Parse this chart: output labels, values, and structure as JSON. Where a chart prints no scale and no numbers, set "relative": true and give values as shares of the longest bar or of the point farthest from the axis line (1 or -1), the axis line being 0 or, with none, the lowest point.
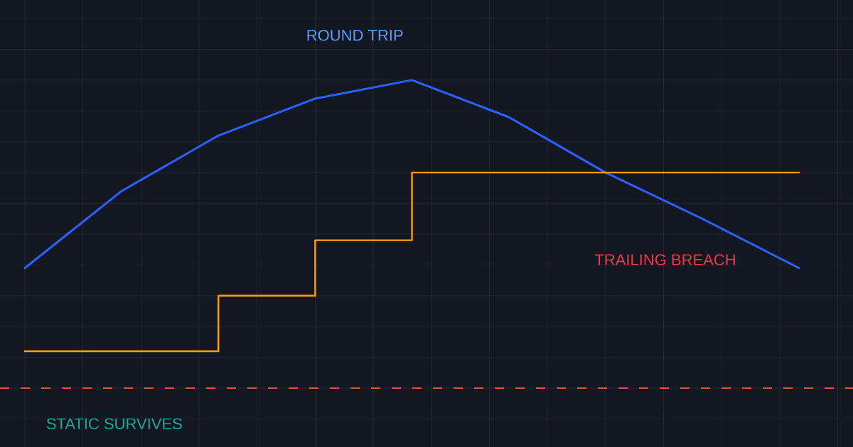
{
  "chart_data": {
    "type": "line",
    "relative": true,
    "grid": true,
    "tick_labels": false,
    "categories": [
      null,
      null,
      null,
      null,
      null,
      null,
      null,
      null,
      null
    ],
    "series": [
      {
        "color": "#2962ff",
        "values": [
          0.39,
          0.64,
          0.82,
          0.94,
          1,
          0.88,
          0.7,
          0.55,
          0.39
        ]
      },
      {
        "type": "step",
        "color": "#f5a11c",
        "values": [
          0.12,
          0.12,
          0.3,
          0.48,
          0.7,
          0.7,
          0.7,
          0.7,
          0.7
        ]
      }
    ],
    "ref_lines": [
      {
        "axis": "y",
        "value": 0,
        "color": "#e5484d",
        "line_style": "dashed"
      }
    ],
    "annotations": [
      "ROUND TRIP",
      "TRAILING BREACH",
      "STATIC SURVIVES"
    ]
  }
}
